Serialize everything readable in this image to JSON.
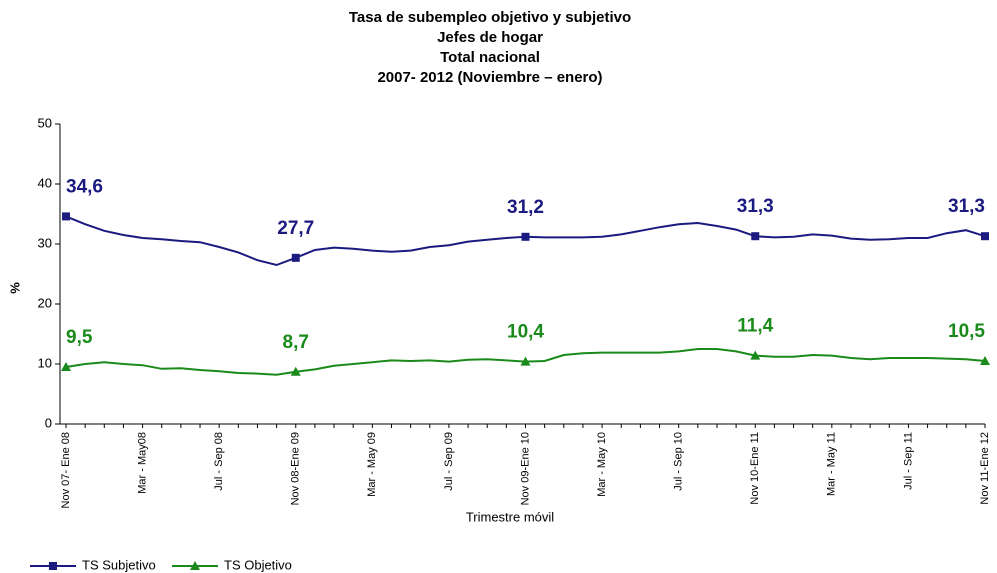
{
  "chart_data": {
    "type": "line",
    "title": [
      "Tasa de subempleo objetivo y subjetivo",
      "Jefes de hogar",
      "Total nacional",
      "2007- 2012 (Noviembre – enero)"
    ],
    "xlabel": "Trimestre móvil",
    "ylabel": "%",
    "categories": [
      "Nov 07- Ene 08",
      null,
      null,
      null,
      "Mar - May08",
      null,
      null,
      null,
      "Jul - Sep 08",
      null,
      null,
      null,
      "Nov 08-Ene 09",
      null,
      null,
      null,
      "Mar - May 09",
      null,
      null,
      null,
      "Jul - Sep 09",
      null,
      null,
      null,
      "Nov 09-Ene 10",
      null,
      null,
      null,
      "Mar - May 10",
      null,
      null,
      null,
      "Jul - Sep 10",
      null,
      null,
      null,
      "Nov 10-Ene 11",
      null,
      null,
      null,
      "Mar - May 11",
      null,
      null,
      null,
      "Jul - Sep 11",
      null,
      null,
      null,
      "Nov 11-Ene 12"
    ],
    "series": [
      {
        "name": "TS Subjetivo",
        "color": "#1a1a80",
        "marker": "square",
        "values": [
          34.6,
          33.3,
          32.2,
          31.5,
          31.0,
          30.8,
          30.5,
          30.3,
          29.5,
          28.6,
          27.3,
          26.5,
          27.7,
          29.0,
          29.4,
          29.2,
          28.9,
          28.7,
          28.9,
          29.5,
          29.8,
          30.4,
          30.7,
          31.0,
          31.2,
          31.1,
          31.1,
          31.1,
          31.2,
          31.6,
          32.2,
          32.8,
          33.3,
          33.5,
          33.0,
          32.4,
          31.3,
          31.1,
          31.2,
          31.6,
          31.4,
          30.9,
          30.7,
          30.8,
          31.0,
          31.0,
          31.8,
          32.3,
          31.3
        ],
        "value_labels": [
          "34,6",
          null,
          null,
          null,
          null,
          null,
          null,
          null,
          null,
          null,
          null,
          null,
          "27,7",
          null,
          null,
          null,
          null,
          null,
          null,
          null,
          null,
          null,
          null,
          null,
          "31,2",
          null,
          null,
          null,
          null,
          null,
          null,
          null,
          null,
          null,
          null,
          null,
          "31,3",
          null,
          null,
          null,
          null,
          null,
          null,
          null,
          null,
          null,
          null,
          null,
          "31,3"
        ]
      },
      {
        "name": "TS Objetivo",
        "color": "#1a8a1a",
        "marker": "triangle",
        "values": [
          9.5,
          10.0,
          10.3,
          10.0,
          9.8,
          9.2,
          9.3,
          9.0,
          8.8,
          8.5,
          8.4,
          8.2,
          8.7,
          9.1,
          9.7,
          10.0,
          10.3,
          10.6,
          10.5,
          10.6,
          10.4,
          10.7,
          10.8,
          10.6,
          10.4,
          10.5,
          11.5,
          11.8,
          11.9,
          11.9,
          11.9,
          11.9,
          12.1,
          12.5,
          12.5,
          12.1,
          11.4,
          11.2,
          11.2,
          11.5,
          11.4,
          11.0,
          10.8,
          11.0,
          11.0,
          11.0,
          10.9,
          10.8,
          10.5
        ],
        "value_labels": [
          "9,5",
          null,
          null,
          null,
          null,
          null,
          null,
          null,
          null,
          null,
          null,
          null,
          "8,7",
          null,
          null,
          null,
          null,
          null,
          null,
          null,
          null,
          null,
          null,
          null,
          "10,4",
          null,
          null,
          null,
          null,
          null,
          null,
          null,
          null,
          null,
          null,
          null,
          "11,4",
          null,
          null,
          null,
          null,
          null,
          null,
          null,
          null,
          null,
          null,
          null,
          "10,5"
        ]
      }
    ],
    "ylim": [
      0,
      50
    ],
    "yticks": [
      0,
      10,
      20,
      30,
      40,
      50
    ],
    "grid": false,
    "legend": "bottom-left"
  }
}
